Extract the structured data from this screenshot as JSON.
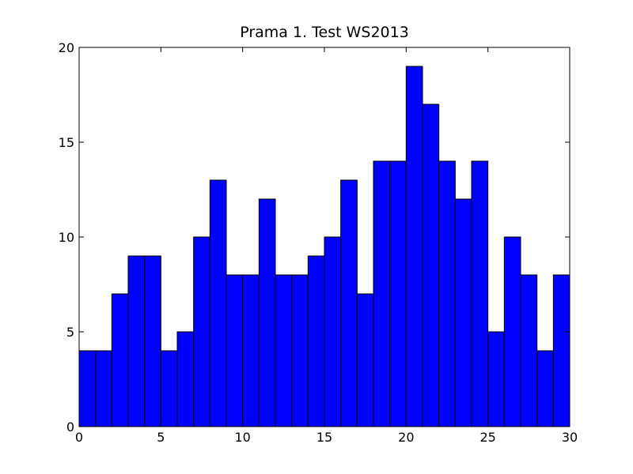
{
  "chart_data": {
    "type": "histogram",
    "title": "Prama 1. Test WS2013",
    "bins": [
      0,
      1,
      2,
      3,
      4,
      5,
      6,
      7,
      8,
      9,
      10,
      11,
      12,
      13,
      14,
      15,
      16,
      17,
      18,
      19,
      20,
      21,
      22,
      23,
      24,
      25,
      26,
      27,
      28,
      29,
      30
    ],
    "values": [
      4,
      4,
      7,
      9,
      9,
      4,
      5,
      10,
      13,
      8,
      8,
      12,
      8,
      8,
      9,
      10,
      13,
      7,
      14,
      14,
      19,
      17,
      14,
      12,
      14,
      5,
      10,
      8,
      4,
      8
    ],
    "color": "#0000ff",
    "xlim": [
      0,
      30
    ],
    "xticks": [
      0,
      5,
      10,
      15,
      20,
      25,
      30
    ],
    "ylim": [
      0,
      20
    ],
    "yticks": [
      0,
      5,
      10,
      15,
      20
    ]
  }
}
